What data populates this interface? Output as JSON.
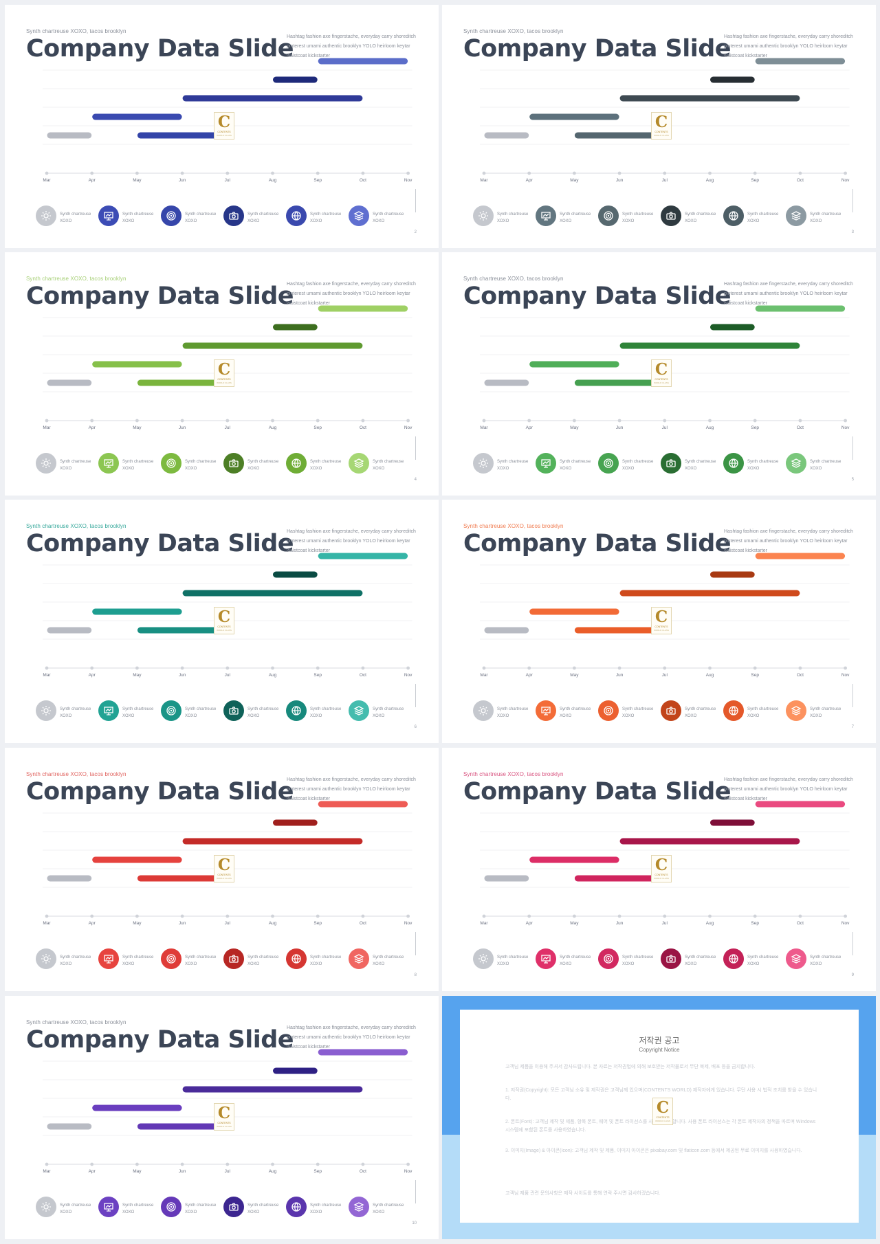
{
  "slides": [
    {
      "subtitle": "Synth chartreuse XOXO, tacos brooklyn",
      "title": "Company Data Slide",
      "page": "2",
      "colors": {
        "accent": "#2d3a97",
        "sub": "#8a8f99",
        "b1": "#b8bbc3",
        "b2": "#3a4ab0",
        "b3": "#3344a8",
        "b4": "#2f3a98",
        "b5": "#1e2a7a",
        "b6": "#5b6dc9",
        "legend": [
          "#c5c8ce",
          "#3c4cb5",
          "#3646aa",
          "#273689",
          "#3a49ae",
          "#5f6fd0"
        ]
      }
    },
    {
      "subtitle": "Synth chartreuse XOXO, tacos brooklyn",
      "title": "Company Data Slide",
      "page": "3",
      "colors": {
        "accent": "#4a5c66",
        "sub": "#8a8f99",
        "b1": "#b8bbc3",
        "b2": "#5d717c",
        "b3": "#54666f",
        "b4": "#3e4a52",
        "b5": "#272e33",
        "b6": "#7e8e96",
        "legend": [
          "#c5c8ce",
          "#627680",
          "#56686f",
          "#2f3a40",
          "#4d5e66",
          "#8c9aa2"
        ]
      }
    },
    {
      "subtitle": "Synth chartreuse XOXO, tacos brooklyn",
      "title": "Company Data Slide",
      "page": "4",
      "colors": {
        "accent": "#7cbb3e",
        "sub": "#a6cf76",
        "b1": "#b8bbc3",
        "b2": "#86c04a",
        "b3": "#7ab43d",
        "b4": "#5f9a30",
        "b5": "#3d6e1f",
        "b6": "#9fd064",
        "legend": [
          "#c5c8ce",
          "#8cc652",
          "#7dba40",
          "#4d7f26",
          "#6fad36",
          "#a6d774"
        ]
      }
    },
    {
      "subtitle": "Synth chartreuse XOXO, tacos brooklyn",
      "title": "Company Data Slide",
      "page": "5",
      "colors": {
        "accent": "#3f9e4b",
        "sub": "#8a8f99",
        "b1": "#b8bbc3",
        "b2": "#4fae58",
        "b3": "#45a050",
        "b4": "#2f8439",
        "b5": "#1d5c27",
        "b6": "#6cc06f",
        "legend": [
          "#c5c8ce",
          "#53b25b",
          "#47a451",
          "#2a6e33",
          "#3b9445",
          "#7ac77c"
        ]
      }
    },
    {
      "subtitle": "Synth chartreuse XOXO, tacos brooklyn",
      "title": "Company Data Slide",
      "page": "6",
      "colors": {
        "accent": "#1a9a8c",
        "sub": "#34a79a",
        "b1": "#b8bbc3",
        "b2": "#1e9e90",
        "b3": "#188f82",
        "b4": "#0f7166",
        "b5": "#0a4b43",
        "b6": "#35b5a7",
        "legend": [
          "#c5c8ce",
          "#22a394",
          "#1a9587",
          "#0f6259",
          "#17897c",
          "#44bcae"
        ]
      }
    },
    {
      "subtitle": "Synth chartreuse XOXO, tacos brooklyn",
      "title": "Company Data Slide",
      "page": "7",
      "colors": {
        "accent": "#e85a2a",
        "sub": "#f07a4e",
        "b1": "#b8bbc3",
        "b2": "#f26a36",
        "b3": "#ea5d29",
        "b4": "#cf4a1c",
        "b5": "#a83a12",
        "b6": "#fb8450",
        "legend": [
          "#c5c8ce",
          "#f36c38",
          "#ec6030",
          "#c2441a",
          "#e4582a",
          "#fc925f"
        ]
      }
    },
    {
      "subtitle": "Synth chartreuse XOXO, tacos brooklyn",
      "title": "Company Data Slide",
      "page": "8",
      "colors": {
        "accent": "#d93a36",
        "sub": "#e0625e",
        "b1": "#b8bbc3",
        "b2": "#e5423e",
        "b3": "#dc3a36",
        "b4": "#c42b28",
        "b5": "#a01f1d",
        "b6": "#ee5b55",
        "legend": [
          "#c5c8ce",
          "#e7443f",
          "#df3c38",
          "#b72724",
          "#d53632",
          "#f06661"
        ]
      }
    },
    {
      "subtitle": "Synth chartreuse XOXO, tacos brooklyn",
      "title": "Company Data Slide",
      "page": "9",
      "colors": {
        "accent": "#c8235d",
        "sub": "#d8517e",
        "b1": "#b8bbc3",
        "b2": "#dc2d66",
        "b3": "#d0255e",
        "b4": "#a8164a",
        "b5": "#7e0e38",
        "b6": "#ea4a80",
        "legend": [
          "#c5c8ce",
          "#df3069",
          "#d22860",
          "#9a1444",
          "#c32157",
          "#ee5a8c"
        ]
      }
    },
    {
      "subtitle": "Synth chartreuse XOXO, tacos brooklyn",
      "title": "Company Data Slide",
      "page": "10",
      "colors": {
        "accent": "#5d39b0",
        "sub": "#8a8f99",
        "b1": "#b8bbc3",
        "b2": "#6a3ebf",
        "b3": "#6238b5",
        "b4": "#4a2b9a",
        "b5": "#2e2084",
        "b6": "#8a5ed0",
        "legend": [
          "#c5c8ce",
          "#6c41c2",
          "#6539b8",
          "#3c2690",
          "#5a35ad",
          "#9366d4"
        ]
      }
    }
  ],
  "description": "Hashtag fashion axe fingerstache, everyday carry shoreditch pinterest umami authentic brooklyn YOLO heirloom keytar waistcoat kickstarter",
  "months": [
    "Mar",
    "Apr",
    "May",
    "Jun",
    "Jul",
    "Aug",
    "Sep",
    "Oct",
    "Nov"
  ],
  "legend_label": "Synth chartreuse XOXO",
  "legend_icons": [
    "sun-icon",
    "presentation-icon",
    "target-icon",
    "camera-icon",
    "globe-icon",
    "layers-icon"
  ],
  "chart_data": {
    "type": "gantt",
    "x_axis": [
      "Mar",
      "Apr",
      "May",
      "Jun",
      "Jul",
      "Aug",
      "Sep",
      "Oct",
      "Nov"
    ],
    "bars": [
      {
        "row": 5,
        "start": 6,
        "end": 8
      },
      {
        "row": 4,
        "start": 5,
        "end": 6
      },
      {
        "row": 3,
        "start": 3,
        "end": 7
      },
      {
        "row": 2,
        "start": 1,
        "end": 3
      },
      {
        "row": 1,
        "start": 0,
        "end": 1
      },
      {
        "row": 1,
        "start": 2,
        "end": 4
      }
    ]
  },
  "logo": {
    "letter": "C",
    "line1": "CONTENTS",
    "line2": "WORLD CLASS"
  },
  "notice": {
    "title": "저작권 공고",
    "subtitle": "Copyright Notice",
    "paragraphs": [
      "고객님 제품을 이용해 주셔서 감사드립니다. 본 자료는 저작권법에 의해 보호받는 저작물로서 무단 복제, 배포 등을 금지합니다.",
      "1. 저작권(Copyright): 모든 고객님 소유 및 제작권은 고객님께 있으며(CONTENTS WORLD) 제작자에게 있습니다. 무단 사용 시 법적 조치를 받을 수 있습니다.",
      "2. 폰트(Font): 고객님 제작 및 제품, 항목 폰트, 웨어 및 폰트 라이선스를 사용하여야 합니다. 사용 폰트 라이선스는 각 폰트 제작자의 정책을 따르며 Windows 시스템에 포함된 폰트를 사용하였습니다.",
      "3. 이미지(Image) & 아이콘(Icon): 고객님 제작 및 제품, 이미지 아이콘은 pixabay.com 및 flaticon.com 등에서 제공된 무료 이미지를 사용하였습니다.",
      "고객님 제품 관련 문의사항은 제작 사이트를 통해 연락 주시면 감사하겠습니다."
    ]
  }
}
